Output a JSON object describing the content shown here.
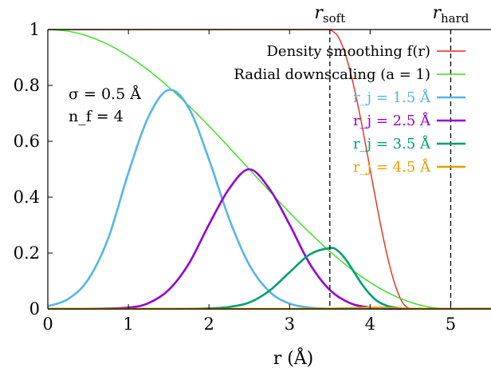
{
  "chart_data": {
    "type": "line",
    "xlabel": "r (Å)",
    "ylabel": "",
    "xlim": [
      0,
      5.5
    ],
    "ylim": [
      0,
      1
    ],
    "x_ticks": [
      "0",
      "1",
      "2",
      "3",
      "4",
      "5"
    ],
    "y_ticks": [
      "0",
      "0.2",
      "0.4",
      "0.6",
      "0.8",
      "1"
    ],
    "grid": false,
    "legend_position": "top-right",
    "vertical_lines": [
      {
        "label": "r_soft",
        "x": 3.5
      },
      {
        "label": "r_hard",
        "x": 5.0
      }
    ],
    "annotations": [
      "σ = 0.5 Å",
      "n_f = 4"
    ],
    "series": [
      {
        "name": "Density smoothing f(r)",
        "color": "#e8291c",
        "x": [
          0,
          3.5,
          3.6,
          3.7,
          3.8,
          3.9,
          4.0,
          4.1,
          4.2,
          4.3,
          4.4,
          4.5,
          4.6,
          4.7,
          4.8,
          4.9,
          5.0,
          5.5
        ],
        "values": [
          1,
          1,
          0.976,
          0.905,
          0.794,
          0.655,
          0.5,
          0.345,
          0.206,
          0.095,
          0.024,
          0.0,
          0.0,
          0.0,
          0.0,
          0.0,
          0.0,
          0.0
        ]
      },
      {
        "name": "Radial downscaling (a = 1)",
        "color": "#33e01a",
        "x": [
          0,
          0.25,
          0.5,
          0.75,
          1.0,
          1.25,
          1.5,
          1.75,
          2.0,
          2.25,
          2.5,
          2.75,
          3.0,
          3.25,
          3.5,
          3.75,
          4.0,
          4.25,
          4.5,
          4.75,
          5.0,
          5.5
        ],
        "values": [
          1.0,
          0.994,
          0.976,
          0.946,
          0.905,
          0.854,
          0.794,
          0.727,
          0.655,
          0.578,
          0.5,
          0.422,
          0.345,
          0.273,
          0.206,
          0.146,
          0.095,
          0.054,
          0.024,
          0.006,
          0.0,
          0.0
        ]
      },
      {
        "name": "r_j = 1.5 Å",
        "color": "#56b4e9",
        "x": [
          0,
          0.25,
          0.5,
          0.75,
          1.0,
          1.25,
          1.5,
          1.75,
          2.0,
          2.25,
          2.5,
          2.75,
          3.0,
          3.25,
          3.5,
          3.75,
          4.0,
          4.25,
          4.5,
          5.0,
          5.5
        ],
        "values": [
          0.01,
          0.035,
          0.105,
          0.253,
          0.487,
          0.688,
          0.784,
          0.719,
          0.535,
          0.323,
          0.158,
          0.062,
          0.019,
          0.005,
          0.001,
          0.0,
          0.0,
          0.0,
          0.0,
          0.0,
          0.0
        ]
      },
      {
        "name": "r_j = 2.5 Å",
        "color": "#9400d3",
        "x": [
          0,
          0.5,
          1.0,
          1.25,
          1.5,
          1.75,
          2.0,
          2.25,
          2.5,
          2.75,
          3.0,
          3.25,
          3.5,
          3.75,
          4.0,
          4.25,
          4.5,
          5.0,
          5.5
        ],
        "values": [
          0.0,
          0.0,
          0.005,
          0.021,
          0.068,
          0.162,
          0.302,
          0.43,
          0.5,
          0.43,
          0.302,
          0.162,
          0.068,
          0.021,
          0.005,
          0.001,
          0.0,
          0.0,
          0.0
        ]
      },
      {
        "name": "r_j = 3.5 Å",
        "color": "#009e73",
        "x": [
          0,
          1.5,
          2.0,
          2.25,
          2.5,
          2.75,
          3.0,
          3.25,
          3.5,
          3.6,
          3.7,
          3.8,
          3.9,
          4.0,
          4.1,
          4.25,
          4.5,
          5.0,
          5.5
        ],
        "values": [
          0.0,
          0.0,
          0.002,
          0.007,
          0.023,
          0.065,
          0.131,
          0.195,
          0.218,
          0.208,
          0.176,
          0.132,
          0.088,
          0.052,
          0.026,
          0.008,
          0.0,
          0.0,
          0.0
        ]
      },
      {
        "name": "r_j = 4.5 Å",
        "color": "#e69f00",
        "x": [
          0,
          3.0,
          3.5,
          3.75,
          4.0,
          4.2,
          4.4,
          4.5,
          4.6,
          4.8,
          5.0,
          5.5
        ],
        "values": [
          0.0,
          0.0,
          0.001,
          0.003,
          0.005,
          0.004,
          0.002,
          0.001,
          0.0005,
          0.0,
          0.0,
          0.0
        ]
      }
    ]
  }
}
